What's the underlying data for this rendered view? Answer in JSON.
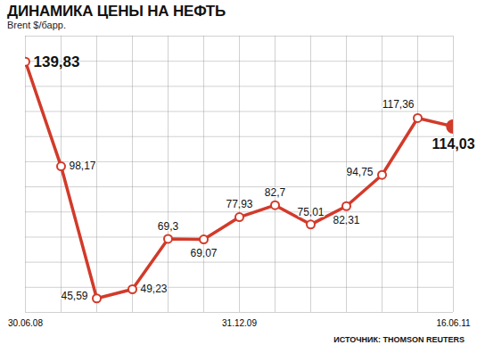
{
  "chart_data": {
    "type": "line",
    "title": "ДИНАМИКА ЦЕНЫ НА НЕФТЬ",
    "subtitle": "Brent $/барр.",
    "caption": "ИСТОЧНИК: THOMSON REUTERS",
    "categories": [
      "30.06.08",
      null,
      null,
      null,
      null,
      null,
      "31.12.09",
      null,
      null,
      null,
      null,
      null,
      "16.06.11"
    ],
    "values": [
      139.83,
      98.17,
      45.59,
      49.23,
      69.3,
      69.07,
      77.93,
      82.7,
      75.01,
      82.31,
      94.75,
      117.36,
      114.03
    ],
    "value_labels": [
      "139,83",
      "98,17",
      "45,59",
      "49,23",
      "69,3",
      "69,07",
      "77,93",
      "82,7",
      "75,01",
      "82,31",
      "94,75",
      "117,36",
      "114,03"
    ],
    "color": "#d23a2a",
    "marker": "circle",
    "ylim": [
      40,
      150
    ],
    "yticks": [
      40,
      50,
      60,
      70,
      80,
      90,
      100,
      110,
      120,
      130,
      140,
      150
    ],
    "grid": true,
    "data_labels": true,
    "tick_labels": "x"
  }
}
